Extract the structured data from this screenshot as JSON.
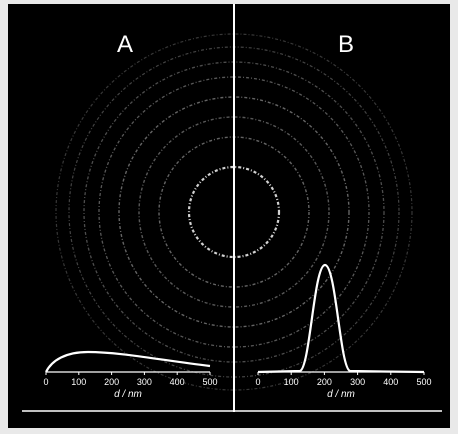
{
  "panels": [
    {
      "label": "A",
      "xticks": [
        0,
        100,
        200,
        300,
        400,
        500
      ],
      "xlabel": "d / nm"
    },
    {
      "label": "B",
      "xticks": [
        0,
        100,
        200,
        300,
        400,
        500
      ],
      "xlabel": "d / nm"
    }
  ]
}
